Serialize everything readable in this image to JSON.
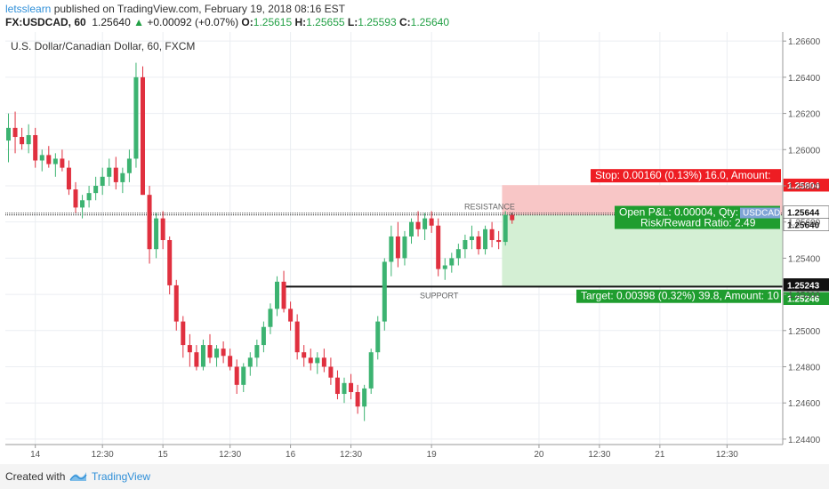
{
  "header": {
    "user": "letsslearn",
    "published_text": " published on TradingView.com, February 19, 2018 08:16 EST",
    "symbol": "FX:USDCAD, 60",
    "last": "1.25640",
    "change": "+0.00092 (+0.07%)",
    "o_label": "O:",
    "o": "1.25615",
    "h_label": "H:",
    "h": "1.25655",
    "l_label": "L:",
    "l": "1.25593",
    "c_label": "C:",
    "c": "1.25640"
  },
  "footer": {
    "created_with": "Created with",
    "brand": "TradingView"
  },
  "colors": {
    "up": "#26a69a",
    "up_bright": "#3cb371",
    "down": "#e0303f",
    "stop_zone": "#f8c6c6",
    "target_zone": "#d4efd4",
    "label_red": "#ee1d23",
    "label_green": "#1f9d2f",
    "grid": "#ebeef2"
  },
  "chart_data": {
    "type": "candlestick",
    "title": "U.S. Dollar/Canadian Dollar, 60, FXCM",
    "y_ticks": [
      "1.24400",
      "1.24600",
      "1.24800",
      "1.25000",
      "1.25200",
      "1.25400",
      "1.25600",
      "1.25800",
      "1.26000",
      "1.26200",
      "1.26400",
      "1.26600"
    ],
    "ylim": [
      1.2437,
      1.2665
    ],
    "x_ticks": [
      {
        "label": "14",
        "bar": 4
      },
      {
        "label": "12:30",
        "bar": 14
      },
      {
        "label": "15",
        "bar": 23
      },
      {
        "label": "12:30",
        "bar": 33
      },
      {
        "label": "16",
        "bar": 42
      },
      {
        "label": "12:30",
        "bar": 51
      },
      {
        "label": "19",
        "bar": 63
      },
      {
        "label": "20",
        "bar": 79
      },
      {
        "label": "12:30",
        "bar": 88
      },
      {
        "label": "21",
        "bar": 97
      },
      {
        "label": "12:30",
        "bar": 107
      }
    ],
    "bar_count": 109,
    "candles": [
      [
        1.2605,
        1.262,
        1.2593,
        1.2612
      ],
      [
        1.2612,
        1.2621,
        1.2598,
        1.2607
      ],
      [
        1.2607,
        1.2612,
        1.26,
        1.2603
      ],
      [
        1.2603,
        1.2614,
        1.2598,
        1.2608
      ],
      [
        1.2608,
        1.2612,
        1.259,
        1.2594
      ],
      [
        1.2594,
        1.26,
        1.2588,
        1.2597
      ],
      [
        1.2597,
        1.2602,
        1.259,
        1.2592
      ],
      [
        1.2592,
        1.2598,
        1.2585,
        1.2595
      ],
      [
        1.2595,
        1.26,
        1.2588,
        1.259
      ],
      [
        1.259,
        1.2594,
        1.2575,
        1.2578
      ],
      [
        1.2578,
        1.2582,
        1.2565,
        1.2568
      ],
      [
        1.2568,
        1.2575,
        1.2562,
        1.2572
      ],
      [
        1.2572,
        1.258,
        1.2568,
        1.2576
      ],
      [
        1.2576,
        1.2585,
        1.2572,
        1.258
      ],
      [
        1.258,
        1.259,
        1.2575,
        1.2585
      ],
      [
        1.2585,
        1.2595,
        1.258,
        1.259
      ],
      [
        1.259,
        1.2596,
        1.2578,
        1.2582
      ],
      [
        1.2582,
        1.259,
        1.2576,
        1.2587
      ],
      [
        1.2587,
        1.26,
        1.2582,
        1.2595
      ],
      [
        1.2595,
        1.2648,
        1.259,
        1.264
      ],
      [
        1.264,
        1.2646,
        1.2575,
        1.2575
      ],
      [
        1.2575,
        1.258,
        1.2537,
        1.2545
      ],
      [
        1.2545,
        1.2565,
        1.254,
        1.2562
      ],
      [
        1.2562,
        1.2566,
        1.2545,
        1.255
      ],
      [
        1.255,
        1.2552,
        1.252,
        1.2525
      ],
      [
        1.2525,
        1.2528,
        1.25,
        1.2505
      ],
      [
        1.2505,
        1.2508,
        1.2485,
        1.2492
      ],
      [
        1.2492,
        1.2498,
        1.248,
        1.2488
      ],
      [
        1.2488,
        1.2492,
        1.2478,
        1.248
      ],
      [
        1.248,
        1.2495,
        1.2478,
        1.2492
      ],
      [
        1.2492,
        1.2498,
        1.2482,
        1.2485
      ],
      [
        1.2485,
        1.2492,
        1.248,
        1.249
      ],
      [
        1.249,
        1.2494,
        1.2482,
        1.2486
      ],
      [
        1.2486,
        1.249,
        1.2478,
        1.248
      ],
      [
        1.248,
        1.2484,
        1.2465,
        1.247
      ],
      [
        1.247,
        1.2482,
        1.2466,
        1.248
      ],
      [
        1.248,
        1.2488,
        1.2475,
        1.2485
      ],
      [
        1.2485,
        1.2495,
        1.248,
        1.2492
      ],
      [
        1.2492,
        1.2505,
        1.2488,
        1.2502
      ],
      [
        1.2502,
        1.2515,
        1.2498,
        1.2512
      ],
      [
        1.2512,
        1.253,
        1.2508,
        1.2527
      ],
      [
        1.2527,
        1.2533,
        1.251,
        1.2512
      ],
      [
        1.2512,
        1.2516,
        1.25,
        1.2505
      ],
      [
        1.2505,
        1.2509,
        1.2484,
        1.2488
      ],
      [
        1.2488,
        1.2492,
        1.248,
        1.2485
      ],
      [
        1.2485,
        1.249,
        1.2478,
        1.2482
      ],
      [
        1.2482,
        1.2488,
        1.2476,
        1.2485
      ],
      [
        1.2485,
        1.249,
        1.2477,
        1.248
      ],
      [
        1.248,
        1.2485,
        1.247,
        1.2474
      ],
      [
        1.2474,
        1.2478,
        1.2462,
        1.2465
      ],
      [
        1.2465,
        1.2474,
        1.246,
        1.2471
      ],
      [
        1.2471,
        1.2476,
        1.2462,
        1.2466
      ],
      [
        1.2466,
        1.247,
        1.2454,
        1.2458
      ],
      [
        1.2458,
        1.247,
        1.245,
        1.2468
      ],
      [
        1.2468,
        1.249,
        1.2465,
        1.2488
      ],
      [
        1.2488,
        1.2508,
        1.2484,
        1.2505
      ],
      [
        1.2505,
        1.254,
        1.25,
        1.2538
      ],
      [
        1.2538,
        1.2558,
        1.253,
        1.2552
      ],
      [
        1.2552,
        1.256,
        1.2535,
        1.254
      ],
      [
        1.254,
        1.2555,
        1.2536,
        1.2552
      ],
      [
        1.2552,
        1.2562,
        1.2548,
        1.256
      ],
      [
        1.256,
        1.2566,
        1.2552,
        1.2556
      ],
      [
        1.2556,
        1.2565,
        1.255,
        1.2562
      ],
      [
        1.2562,
        1.2566,
        1.2554,
        1.2558
      ],
      [
        1.2558,
        1.2562,
        1.253,
        1.2534
      ],
      [
        1.2534,
        1.254,
        1.2528,
        1.2536
      ],
      [
        1.2536,
        1.2543,
        1.2532,
        1.254
      ],
      [
        1.254,
        1.2548,
        1.2536,
        1.2545
      ],
      [
        1.2545,
        1.2553,
        1.254,
        1.255
      ],
      [
        1.255,
        1.2558,
        1.2545,
        1.2552
      ],
      [
        1.2552,
        1.2555,
        1.2542,
        1.2545
      ],
      [
        1.2545,
        1.2558,
        1.2542,
        1.2556
      ],
      [
        1.2556,
        1.256,
        1.2546,
        1.255
      ],
      [
        1.255,
        1.2555,
        1.2545,
        1.2549
      ],
      [
        1.2549,
        1.2566,
        1.2547,
        1.2564
      ],
      [
        1.2564,
        1.2565,
        1.2559,
        1.2561
      ]
    ],
    "annotations": {
      "resistance": {
        "label": "RESISTANCE",
        "price": 1.25644
      },
      "support": {
        "label": "SUPPORT",
        "price": 1.25243
      },
      "entry": 1.2564,
      "stop": 1.25804,
      "target": 1.25246,
      "stop_label": "Stop: 0.00160 (0.13%) 16.0, Amount:",
      "target_label": "Target: 0.00398 (0.32%) 39.8, Amount: 10",
      "pnl_label": "Open P&L: 0.00004, Qty:",
      "rr_label": "Risk/Reward Ratio: 2.49",
      "symbol_tag": "USDCAD",
      "price_tags": [
        "1.25804",
        "1.25644",
        "1.25640",
        "1.25243",
        "1.25246"
      ]
    }
  }
}
